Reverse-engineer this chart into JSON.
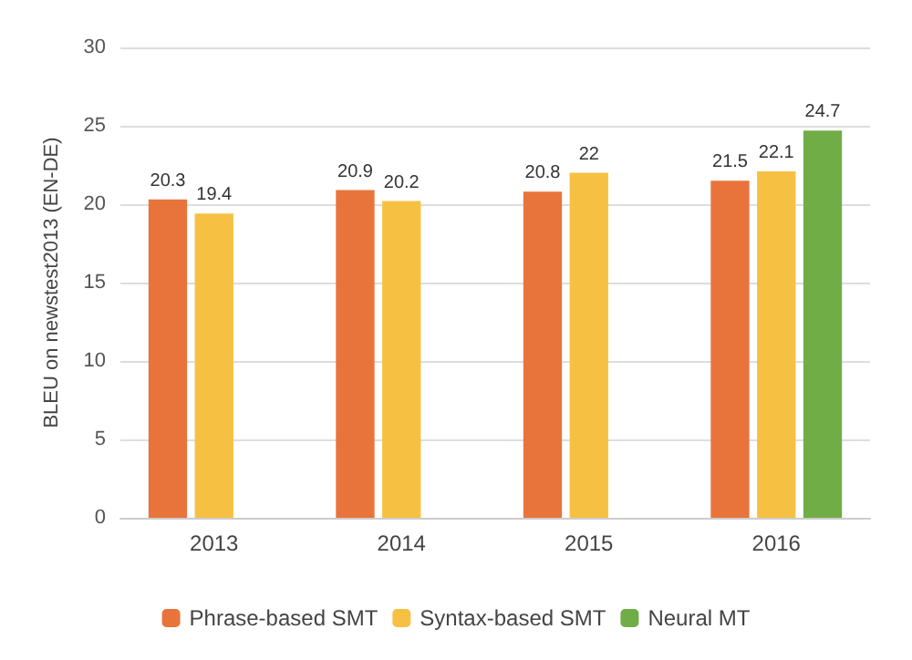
{
  "chart_data": {
    "type": "bar",
    "ylabel": "BLEU on newstest2013 (EN-DE)",
    "categories": [
      "2013",
      "2014",
      "2015",
      "2016"
    ],
    "series": [
      {
        "name": "Phrase-based SMT",
        "color": "#e8743b",
        "values": [
          20.3,
          20.9,
          20.8,
          21.5
        ]
      },
      {
        "name": "Syntax-based SMT",
        "color": "#f6c143",
        "values": [
          19.4,
          20.2,
          22,
          22.1
        ]
      },
      {
        "name": "Neural MT",
        "color": "#70ad47",
        "values": [
          null,
          null,
          null,
          24.7
        ]
      }
    ],
    "ylim": [
      0,
      30
    ],
    "yticks": [
      0,
      5,
      10,
      15,
      20,
      25,
      30
    ],
    "grid": "y",
    "legend": "bottom",
    "data_labels": true
  }
}
